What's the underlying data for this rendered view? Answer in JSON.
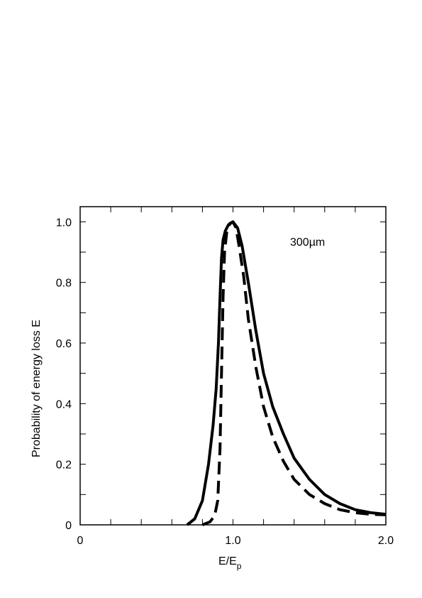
{
  "chart_data": {
    "type": "line",
    "xlabel_main": "E/E",
    "xlabel_sub": "p",
    "ylabel": "Probability of energy loss E",
    "annotation": "300µm",
    "xlim": [
      0,
      2.0
    ],
    "ylim": [
      0,
      1.05
    ],
    "x_tick_labels": [
      {
        "value": 0,
        "label": "0"
      },
      {
        "value": 1.0,
        "label": "1.0"
      },
      {
        "value": 2.0,
        "label": "2.0"
      }
    ],
    "y_tick_labels": [
      {
        "value": 0,
        "label": "0"
      },
      {
        "value": 0.2,
        "label": "0.2"
      },
      {
        "value": 0.4,
        "label": "0.4"
      },
      {
        "value": 0.6,
        "label": "0.6"
      },
      {
        "value": 0.8,
        "label": "0.8"
      },
      {
        "value": 1.0,
        "label": "1.0"
      }
    ],
    "x_minor_step": 0.2,
    "y_minor_step": 0.1,
    "grid": false,
    "series": [
      {
        "style": "solid",
        "color": "#000000",
        "points": [
          [
            0.7,
            0.0
          ],
          [
            0.75,
            0.02
          ],
          [
            0.8,
            0.08
          ],
          [
            0.84,
            0.2
          ],
          [
            0.87,
            0.33
          ],
          [
            0.89,
            0.45
          ],
          [
            0.905,
            0.6
          ],
          [
            0.915,
            0.75
          ],
          [
            0.925,
            0.88
          ],
          [
            0.935,
            0.94
          ],
          [
            0.95,
            0.97
          ],
          [
            0.97,
            0.99
          ],
          [
            1.0,
            1.0
          ],
          [
            1.03,
            0.98
          ],
          [
            1.06,
            0.92
          ],
          [
            1.1,
            0.8
          ],
          [
            1.15,
            0.64
          ],
          [
            1.2,
            0.5
          ],
          [
            1.26,
            0.39
          ],
          [
            1.33,
            0.3
          ],
          [
            1.4,
            0.22
          ],
          [
            1.5,
            0.15
          ],
          [
            1.6,
            0.1
          ],
          [
            1.7,
            0.07
          ],
          [
            1.8,
            0.05
          ],
          [
            1.9,
            0.04
          ],
          [
            2.0,
            0.035
          ]
        ]
      },
      {
        "style": "dashed",
        "color": "#000000",
        "points": [
          [
            0.8,
            0.0
          ],
          [
            0.85,
            0.01
          ],
          [
            0.88,
            0.03
          ],
          [
            0.9,
            0.08
          ],
          [
            0.915,
            0.25
          ],
          [
            0.925,
            0.5
          ],
          [
            0.935,
            0.75
          ],
          [
            0.945,
            0.9
          ],
          [
            0.96,
            0.97
          ],
          [
            0.98,
            0.995
          ],
          [
            1.0,
            1.0
          ],
          [
            1.02,
            0.98
          ],
          [
            1.04,
            0.92
          ],
          [
            1.07,
            0.82
          ],
          [
            1.1,
            0.68
          ],
          [
            1.15,
            0.52
          ],
          [
            1.2,
            0.39
          ],
          [
            1.26,
            0.29
          ],
          [
            1.33,
            0.21
          ],
          [
            1.4,
            0.15
          ],
          [
            1.5,
            0.1
          ],
          [
            1.6,
            0.07
          ],
          [
            1.7,
            0.05
          ],
          [
            1.8,
            0.04
          ],
          [
            1.9,
            0.035
          ],
          [
            2.0,
            0.033
          ]
        ]
      }
    ]
  }
}
